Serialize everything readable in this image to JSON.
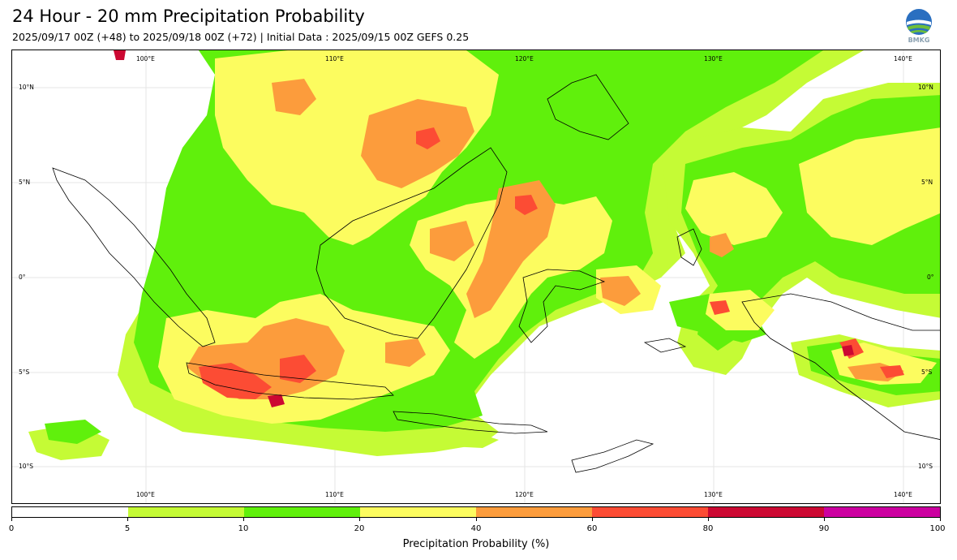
{
  "header": {
    "title": "24 Hour - 20 mm Precipitation Probability",
    "subtitle": "2025/09/17 00Z (+48) to 2025/09/18 00Z (+72) | Initial Data : 2025/09/15 00Z GEFS 0.25"
  },
  "logo": {
    "text": "BMKG",
    "icon": "bmkg-globe-logo"
  },
  "map": {
    "region": "Indonesia",
    "longitude_labels": [
      "100°E",
      "110°E",
      "120°E",
      "130°E",
      "140°E"
    ],
    "latitude_labels": [
      "10°N",
      "5°N",
      "0°",
      "5°S",
      "10°S"
    ],
    "grid": true
  },
  "colorbar": {
    "title": "Precipitation Probability (%)",
    "ticks": [
      "0",
      "5",
      "10",
      "20",
      "40",
      "60",
      "80",
      "90",
      "100"
    ],
    "bins": [
      {
        "range": "0-5",
        "color": "#ffffff"
      },
      {
        "range": "5-10",
        "color": "#c5fb35"
      },
      {
        "range": "10-20",
        "color": "#60f00c"
      },
      {
        "range": "20-40",
        "color": "#fcfc5f"
      },
      {
        "range": "40-60",
        "color": "#fc9c3c"
      },
      {
        "range": "60-80",
        "color": "#fc4c34"
      },
      {
        "range": "80-90",
        "color": "#cc0832"
      },
      {
        "range": "90-100",
        "color": "#cc00a0"
      }
    ]
  }
}
